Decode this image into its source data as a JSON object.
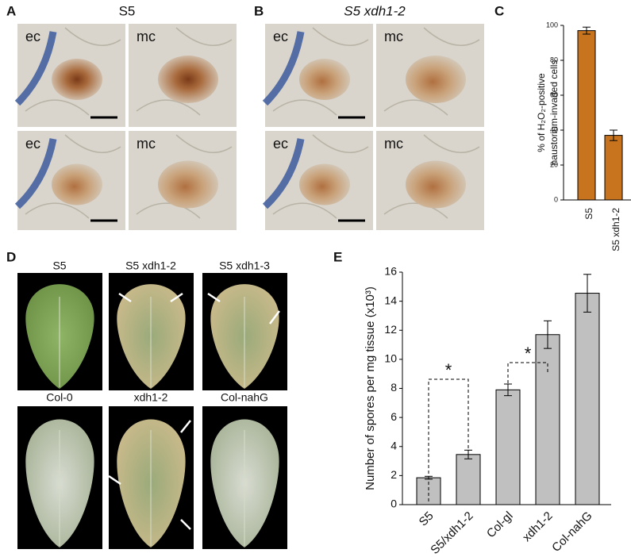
{
  "panel_labels": [
    "A",
    "B",
    "C",
    "D",
    "E"
  ],
  "panel_a": {
    "title": "S5",
    "photo_labels": [
      "ec",
      "mc",
      "ec",
      "mc"
    ]
  },
  "panel_b": {
    "title": "S5 xdh1-2",
    "photo_labels": [
      "ec",
      "mc",
      "ec",
      "mc"
    ]
  },
  "panel_d": {
    "leaf_labels": [
      "S5",
      "S5 xdh1-2",
      "S5 xdh1-3",
      "Col-0",
      "xdh1-2",
      "Col-nahG"
    ]
  },
  "chart_data": [
    {
      "type": "bar",
      "ylabel": [
        "% of H₂O₂-positive",
        "haustorium-invaded cells"
      ],
      "categories": [
        "S5",
        "S5 xdh1-2"
      ],
      "values": [
        97,
        37
      ],
      "errors": [
        2,
        3
      ],
      "color": "#c8741f",
      "ylim": [
        0,
        100
      ],
      "yticks": [
        0,
        20,
        40,
        60,
        80,
        100
      ]
    },
    {
      "type": "bar",
      "ylabel": [
        "Number of spores per mg tissue (x10³)"
      ],
      "categories": [
        "S5",
        "S5/xdh1-2",
        "Col-gl",
        "xdh1-2",
        "Col-nahG"
      ],
      "values": [
        1.85,
        3.45,
        7.9,
        11.7,
        14.55
      ],
      "errors": [
        0.1,
        0.3,
        0.4,
        0.95,
        1.3
      ],
      "color": "#c0c0c0",
      "ylim": [
        0,
        16
      ],
      "yticks": [
        0,
        2,
        4,
        6,
        8,
        10,
        12,
        14,
        16
      ],
      "annotations": [
        "*",
        "*"
      ]
    }
  ]
}
